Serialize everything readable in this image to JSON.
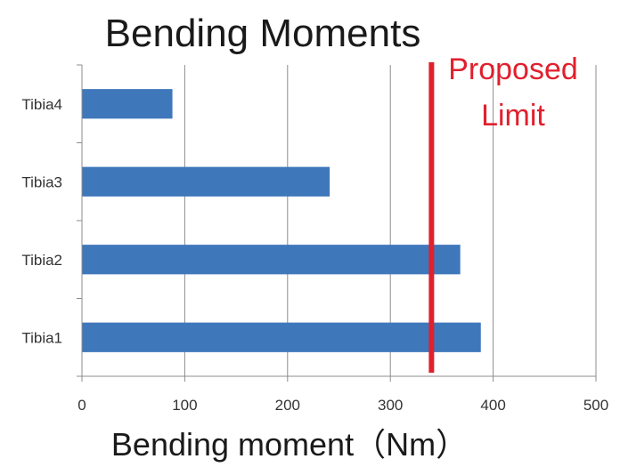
{
  "chart_data": {
    "type": "bar",
    "orientation": "horizontal",
    "title": "Bending Moments",
    "xlabel": "Bending moment（Nm）",
    "ylabel": "",
    "categories": [
      "Tibia4",
      "Tibia3",
      "Tibia2",
      "Tibia1"
    ],
    "values": [
      88,
      241,
      368,
      388
    ],
    "xlim": [
      0,
      500
    ],
    "xticks": [
      0,
      100,
      200,
      300,
      400,
      500
    ],
    "grid": "vertical",
    "legend": "none",
    "bar_color": "#3f77bb",
    "reference_line": {
      "value": 340,
      "label_line1": "Proposed",
      "label_line2": "Limit",
      "color": "#e0202e"
    }
  }
}
